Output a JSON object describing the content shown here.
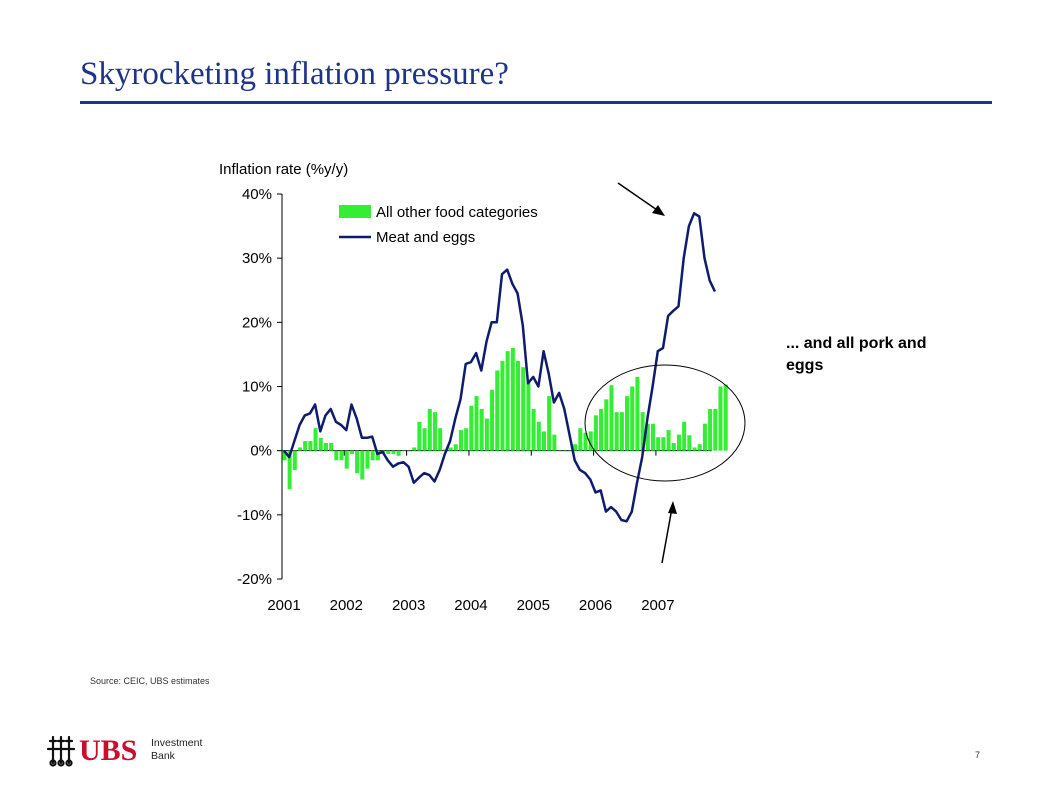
{
  "slide": {
    "title": "Skyrocketing inflation pressure?",
    "annotation": "... and all pork and eggs",
    "source": "Source: CEIC, UBS estimates",
    "page_number": "7"
  },
  "logo": {
    "brand": "UBS",
    "sub_line1": "Investment",
    "sub_line2": "Bank",
    "colors": {
      "brand_red": "#c8102e",
      "mark": "#111111"
    }
  },
  "colors": {
    "title": "#1f3489",
    "bars": "#33ee33",
    "line": "#0f1c6e",
    "text": "#000000"
  },
  "chart_data": {
    "type": "bar+line",
    "title": "",
    "ylabel": "Inflation rate (%y/y)",
    "xlabel": "",
    "ylim": [
      -20,
      40
    ],
    "yticks": [
      -20,
      -10,
      0,
      10,
      20,
      30,
      40
    ],
    "ytick_labels": [
      "-20%",
      "-10%",
      "0%",
      "10%",
      "20%",
      "30%",
      "40%"
    ],
    "xlim": [
      2001.0,
      2007.9
    ],
    "xtick_years": [
      "2001",
      "2002",
      "2003",
      "2004",
      "2005",
      "2006",
      "2007"
    ],
    "legend_position": "top-left",
    "grid": false,
    "series": [
      {
        "name": "All other food categories",
        "kind": "bar",
        "color": "#33ee33",
        "x_start": 2001.0,
        "x_step": 0.0833,
        "values": [
          -1.5,
          -6,
          -3,
          0.5,
          1.5,
          1.5,
          3.5,
          2,
          1.2,
          1.2,
          -1.5,
          -1.5,
          -2.8,
          -0.5,
          -3.5,
          -4.5,
          -2.8,
          -1.5,
          -1.5,
          -0.5,
          -0.5,
          -0.5,
          -0.8,
          0,
          0,
          0.5,
          4.5,
          3.5,
          6.5,
          6,
          3.5,
          0.2,
          0.5,
          1,
          3.2,
          3.5,
          7,
          8.5,
          6.5,
          5,
          9.5,
          12.5,
          14,
          15.5,
          16,
          14,
          13,
          10.5,
          6.5,
          4.5,
          3,
          8.5,
          2.5,
          0,
          0,
          0,
          1,
          3.5,
          2.8,
          3,
          5.5,
          6.5,
          8,
          10.2,
          6,
          6,
          8.5,
          10,
          11.5,
          6,
          4.2,
          4.2,
          2.1,
          2.1,
          3.2,
          1.2,
          2.5,
          4.5,
          2.4,
          0.5,
          1,
          4.2,
          6.5,
          6.5,
          10,
          10.3
        ]
      },
      {
        "name": "Meat and eggs",
        "kind": "line",
        "color": "#0f1c6e",
        "x_start": 2001.0,
        "x_step": 0.0833,
        "values": [
          0,
          -1,
          1.5,
          4,
          5.5,
          5.8,
          7.2,
          3,
          5.5,
          6.5,
          4.5,
          4,
          3.2,
          7.2,
          5,
          2,
          2,
          2.2,
          -0.5,
          -0.2,
          -1.5,
          -2.5,
          -2,
          -1.8,
          -2.5,
          -5,
          -4.2,
          -3.5,
          -3.8,
          -4.8,
          -3,
          -0.5,
          1.5,
          5,
          8,
          13.5,
          13.8,
          15.2,
          12.5,
          17,
          20,
          20,
          27.5,
          28.2,
          26,
          24.5,
          19.5,
          10.5,
          11.5,
          10,
          15.5,
          12,
          7.5,
          9,
          6.5,
          2.5,
          -1.5,
          -3,
          -3.5,
          -4.5,
          -6.5,
          -6.2,
          -9.5,
          -8.8,
          -9.5,
          -10.8,
          -11,
          -9.5,
          -5,
          -1,
          5,
          10,
          15.5,
          16,
          21,
          21.8,
          22.5,
          30,
          35,
          37,
          36.5,
          30,
          26.5,
          24.8
        ]
      }
    ]
  }
}
